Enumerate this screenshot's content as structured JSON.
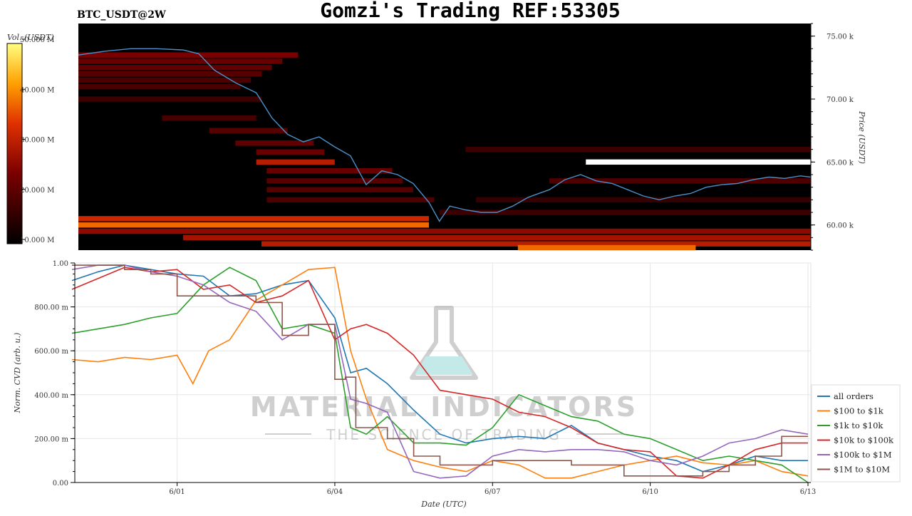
{
  "header": {
    "title": "Gomzi's Trading REF:53305",
    "symbol": "BTC_USDT@2W"
  },
  "watermark": {
    "brand": "MATERIAL INDICATORS",
    "tagline": "THE SCIENCE OF TRADING"
  },
  "chart_data": [
    {
      "type": "heatmap",
      "name": "order-book-heatmap",
      "colorbar": {
        "label": "Vol. (USDT)",
        "ticks": [
          {
            "value": 10,
            "label": "10.000 M"
          },
          {
            "value": 20,
            "label": "20.000 M"
          },
          {
            "value": 30,
            "label": "30.000 M"
          },
          {
            "value": 40,
            "label": "40.000 M"
          },
          {
            "value": 50,
            "label": "50.000 M"
          }
        ],
        "range": [
          10,
          50
        ]
      },
      "ylabel": "Price (USDT)",
      "ylim": [
        58,
        76
      ],
      "yticks": [
        {
          "value": 60,
          "label": "60.00 k"
        },
        {
          "value": 65,
          "label": "65.00 k"
        },
        {
          "value": 70,
          "label": "70.00 k"
        },
        {
          "value": 75,
          "label": "75.00 k"
        }
      ],
      "xlim": [
        0,
        14
      ],
      "bands": [
        {
          "price": 73.5,
          "x0": 0,
          "x1": 4.2,
          "vol": 24
        },
        {
          "price": 73.0,
          "x0": 0,
          "x1": 3.9,
          "vol": 22
        },
        {
          "price": 72.5,
          "x0": 0,
          "x1": 3.7,
          "vol": 21
        },
        {
          "price": 72.0,
          "x0": 0,
          "x1": 3.5,
          "vol": 20
        },
        {
          "price": 71.5,
          "x0": 0,
          "x1": 3.3,
          "vol": 19
        },
        {
          "price": 71.0,
          "x0": 0,
          "x1": 3.1,
          "vol": 18
        },
        {
          "price": 70.0,
          "x0": 0,
          "x1": 3.5,
          "vol": 17
        },
        {
          "price": 68.5,
          "x0": 1.6,
          "x1": 3.4,
          "vol": 18
        },
        {
          "price": 67.5,
          "x0": 2.5,
          "x1": 4.0,
          "vol": 20
        },
        {
          "price": 66.5,
          "x0": 3.0,
          "x1": 4.5,
          "vol": 21
        },
        {
          "price": 65.8,
          "x0": 3.4,
          "x1": 4.7,
          "vol": 22
        },
        {
          "price": 65.0,
          "x0": 3.4,
          "x1": 4.9,
          "vol": 30
        },
        {
          "price": 64.3,
          "x0": 3.6,
          "x1": 6.0,
          "vol": 22
        },
        {
          "price": 63.5,
          "x0": 3.6,
          "x1": 6.2,
          "vol": 20
        },
        {
          "price": 62.8,
          "x0": 3.6,
          "x1": 6.4,
          "vol": 20
        },
        {
          "price": 62.0,
          "x0": 3.6,
          "x1": 6.8,
          "vol": 19
        },
        {
          "price": 60.5,
          "x0": 0,
          "x1": 6.7,
          "vol": 32
        },
        {
          "price": 60.0,
          "x0": 0,
          "x1": 6.7,
          "vol": 38
        },
        {
          "price": 59.5,
          "x0": 0,
          "x1": 14,
          "vol": 26
        },
        {
          "price": 59.0,
          "x0": 2.0,
          "x1": 14,
          "vol": 28
        },
        {
          "price": 58.5,
          "x0": 3.5,
          "x1": 14,
          "vol": 30
        },
        {
          "price": 58.2,
          "x0": 8.4,
          "x1": 11.8,
          "vol": 38
        },
        {
          "price": 66.0,
          "x0": 7.4,
          "x1": 14,
          "vol": 17
        },
        {
          "price": 65.0,
          "x0": 9.7,
          "x1": 14,
          "vol": 50
        },
        {
          "price": 63.5,
          "x0": 9.0,
          "x1": 14,
          "vol": 19
        },
        {
          "price": 62.0,
          "x0": 7.6,
          "x1": 14,
          "vol": 16
        },
        {
          "price": 61.0,
          "x0": 6.9,
          "x1": 14,
          "vol": 17
        }
      ],
      "price_series": [
        {
          "x": 0.0,
          "y": 73.5
        },
        {
          "x": 0.5,
          "y": 73.8
        },
        {
          "x": 1.0,
          "y": 74.0
        },
        {
          "x": 1.5,
          "y": 74.0
        },
        {
          "x": 2.0,
          "y": 73.9
        },
        {
          "x": 2.3,
          "y": 73.6
        },
        {
          "x": 2.6,
          "y": 72.3
        },
        {
          "x": 3.0,
          "y": 71.3
        },
        {
          "x": 3.4,
          "y": 70.5
        },
        {
          "x": 3.7,
          "y": 68.5
        },
        {
          "x": 4.0,
          "y": 67.2
        },
        {
          "x": 4.3,
          "y": 66.6
        },
        {
          "x": 4.6,
          "y": 67.0
        },
        {
          "x": 4.9,
          "y": 66.2
        },
        {
          "x": 5.2,
          "y": 65.5
        },
        {
          "x": 5.5,
          "y": 63.2
        },
        {
          "x": 5.8,
          "y": 64.3
        },
        {
          "x": 6.1,
          "y": 64.0
        },
        {
          "x": 6.4,
          "y": 63.3
        },
        {
          "x": 6.7,
          "y": 61.8
        },
        {
          "x": 6.9,
          "y": 60.3
        },
        {
          "x": 7.1,
          "y": 61.5
        },
        {
          "x": 7.4,
          "y": 61.2
        },
        {
          "x": 7.7,
          "y": 61.0
        },
        {
          "x": 8.0,
          "y": 61.0
        },
        {
          "x": 8.3,
          "y": 61.5
        },
        {
          "x": 8.6,
          "y": 62.2
        },
        {
          "x": 9.0,
          "y": 62.8
        },
        {
          "x": 9.3,
          "y": 63.6
        },
        {
          "x": 9.6,
          "y": 64.0
        },
        {
          "x": 9.9,
          "y": 63.5
        },
        {
          "x": 10.2,
          "y": 63.3
        },
        {
          "x": 10.5,
          "y": 62.8
        },
        {
          "x": 10.8,
          "y": 62.3
        },
        {
          "x": 11.1,
          "y": 62.0
        },
        {
          "x": 11.4,
          "y": 62.3
        },
        {
          "x": 11.7,
          "y": 62.5
        },
        {
          "x": 12.0,
          "y": 63.0
        },
        {
          "x": 12.3,
          "y": 63.2
        },
        {
          "x": 12.6,
          "y": 63.3
        },
        {
          "x": 12.9,
          "y": 63.6
        },
        {
          "x": 13.2,
          "y": 63.8
        },
        {
          "x": 13.5,
          "y": 63.7
        },
        {
          "x": 13.8,
          "y": 63.9
        },
        {
          "x": 14.0,
          "y": 63.8
        }
      ],
      "price_color": "#4a90c8",
      "background": "#000000"
    },
    {
      "type": "line",
      "name": "cvd-chart",
      "xlabel": "Date (UTC)",
      "ylabel": "Norm. CVD (arb. u.)",
      "ylim": [
        0,
        1
      ],
      "xlim": [
        0,
        14
      ],
      "yticks": [
        {
          "value": 0,
          "label": "0.00"
        },
        {
          "value": 0.2,
          "label": "200.00 m"
        },
        {
          "value": 0.4,
          "label": "400.00 m"
        },
        {
          "value": 0.6,
          "label": "600.00 m"
        },
        {
          "value": 0.8,
          "label": "800.00 m"
        },
        {
          "value": 1.0,
          "label": "1.00"
        }
      ],
      "xticks": [
        {
          "value": 2,
          "label": "6/01"
        },
        {
          "value": 5,
          "label": "6/04"
        },
        {
          "value": 8,
          "label": "6/07"
        },
        {
          "value": 11,
          "label": "6/10"
        },
        {
          "value": 14,
          "label": "6/13"
        }
      ],
      "legend_position": "right",
      "series": [
        {
          "name": "all orders",
          "color": "#1f77b4",
          "x": [
            0,
            0.5,
            1,
            1.5,
            2,
            2.5,
            3,
            3.5,
            4,
            4.5,
            5,
            5.3,
            5.6,
            6,
            6.5,
            7,
            7.5,
            8,
            8.5,
            9,
            9.5,
            10,
            10.5,
            11,
            11.5,
            12,
            12.5,
            13,
            13.5,
            14
          ],
          "y": [
            0.92,
            0.96,
            0.99,
            0.97,
            0.95,
            0.94,
            0.85,
            0.86,
            0.9,
            0.92,
            0.75,
            0.5,
            0.52,
            0.45,
            0.33,
            0.22,
            0.18,
            0.2,
            0.21,
            0.2,
            0.26,
            0.18,
            0.15,
            0.12,
            0.1,
            0.05,
            0.08,
            0.12,
            0.1,
            0.1
          ]
        },
        {
          "name": "$100 to $1k",
          "color": "#ff7f0e",
          "x": [
            0,
            0.5,
            1,
            1.5,
            2,
            2.3,
            2.6,
            3,
            3.5,
            4,
            4.5,
            5,
            5.3,
            5.6,
            6,
            6.5,
            7,
            7.5,
            8,
            8.5,
            9,
            9.5,
            10,
            10.5,
            11,
            11.5,
            12,
            12.5,
            13,
            13.5,
            14
          ],
          "y": [
            0.56,
            0.55,
            0.57,
            0.56,
            0.58,
            0.45,
            0.6,
            0.65,
            0.83,
            0.9,
            0.97,
            0.98,
            0.6,
            0.38,
            0.15,
            0.1,
            0.07,
            0.05,
            0.1,
            0.08,
            0.02,
            0.02,
            0.05,
            0.08,
            0.1,
            0.12,
            0.09,
            0.08,
            0.1,
            0.05,
            0.03
          ]
        },
        {
          "name": "$1k to $10k",
          "color": "#2ca02c",
          "x": [
            0,
            0.5,
            1,
            1.5,
            2,
            2.5,
            3,
            3.5,
            4,
            4.5,
            5,
            5.3,
            5.6,
            6,
            6.5,
            7,
            7.5,
            8,
            8.5,
            9,
            9.5,
            10,
            10.5,
            11,
            11.5,
            12,
            12.5,
            13,
            13.5,
            14
          ],
          "y": [
            0.68,
            0.7,
            0.72,
            0.75,
            0.77,
            0.9,
            0.98,
            0.92,
            0.7,
            0.72,
            0.68,
            0.25,
            0.22,
            0.3,
            0.18,
            0.18,
            0.17,
            0.25,
            0.4,
            0.35,
            0.3,
            0.28,
            0.22,
            0.2,
            0.15,
            0.1,
            0.12,
            0.1,
            0.08,
            0.0
          ]
        },
        {
          "name": "$10k to $100k",
          "color": "#d62728",
          "x": [
            0,
            0.5,
            1,
            1.5,
            2,
            2.5,
            3,
            3.5,
            4,
            4.5,
            5,
            5.3,
            5.6,
            6,
            6.5,
            7,
            7.5,
            8,
            8.5,
            9,
            9.5,
            10,
            10.5,
            11,
            11.5,
            12,
            12.5,
            13,
            13.5,
            14
          ],
          "y": [
            0.88,
            0.93,
            0.98,
            0.96,
            0.97,
            0.88,
            0.9,
            0.82,
            0.85,
            0.92,
            0.65,
            0.7,
            0.72,
            0.68,
            0.58,
            0.42,
            0.4,
            0.38,
            0.32,
            0.3,
            0.25,
            0.18,
            0.15,
            0.14,
            0.03,
            0.02,
            0.08,
            0.15,
            0.18,
            0.18
          ]
        },
        {
          "name": "$100k to $1M",
          "color": "#9467bd",
          "x": [
            0,
            0.5,
            1,
            1.5,
            2,
            2.5,
            3,
            3.5,
            4,
            4.5,
            5,
            5.3,
            5.6,
            6,
            6.5,
            7,
            7.5,
            8,
            8.5,
            9,
            9.5,
            10,
            10.5,
            11,
            11.5,
            12,
            12.5,
            13,
            13.5,
            14
          ],
          "y": [
            0.97,
            0.99,
            0.99,
            0.96,
            0.94,
            0.9,
            0.82,
            0.78,
            0.65,
            0.72,
            0.72,
            0.38,
            0.36,
            0.32,
            0.05,
            0.02,
            0.03,
            0.12,
            0.15,
            0.14,
            0.15,
            0.15,
            0.14,
            0.1,
            0.08,
            0.12,
            0.18,
            0.2,
            0.24,
            0.22
          ]
        },
        {
          "name": "$1M to $10M",
          "color": "#8c564b",
          "step": true,
          "x": [
            0,
            0.5,
            1,
            1.5,
            2,
            2.5,
            3,
            3.5,
            4,
            4.5,
            5,
            5.2,
            5.4,
            6,
            6.5,
            7,
            7.5,
            8,
            8.5,
            9,
            9.5,
            10,
            10.5,
            11,
            11.5,
            12,
            12.5,
            13,
            13.5,
            14
          ],
          "y": [
            0.99,
            0.99,
            0.97,
            0.95,
            0.85,
            0.85,
            0.85,
            0.82,
            0.67,
            0.72,
            0.47,
            0.48,
            0.25,
            0.2,
            0.12,
            0.08,
            0.08,
            0.1,
            0.1,
            0.1,
            0.08,
            0.08,
            0.03,
            0.03,
            0.03,
            0.05,
            0.08,
            0.12,
            0.21,
            0.21
          ]
        }
      ]
    }
  ]
}
